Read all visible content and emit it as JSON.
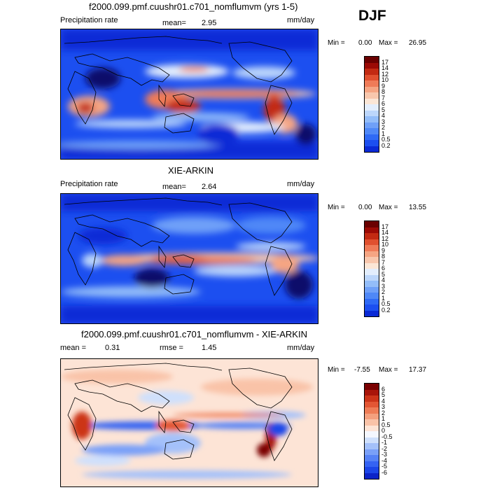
{
  "season": "DJF",
  "units": "mm/day",
  "colors": {
    "abs_scale": [
      "#08086b",
      "#0a2ad6",
      "#1c4ff0",
      "#2f6af5",
      "#4f88f7",
      "#6fa0f8",
      "#93bdf9",
      "#bcd6fb",
      "#e3eefd",
      "#fbe6d6",
      "#f8c7ad",
      "#f5a583",
      "#ef7b58",
      "#e0502f",
      "#c22a12",
      "#9b0a05",
      "#6a0000"
    ],
    "diff_scale": [
      "#080870",
      "#0c24c8",
      "#1c46e8",
      "#3563f3",
      "#5682f6",
      "#7aa0f8",
      "#a4c1fa",
      "#cfe0fc",
      "#f4f7fe",
      "#fde4d6",
      "#f9c3a8",
      "#f4a07e",
      "#ee7c56",
      "#e35634",
      "#cc3419",
      "#a8150a",
      "#7a0000"
    ]
  },
  "panels": [
    {
      "title": "f2000.099.pmf.cuushr01.c701_nomflumvm (yrs 1-5)",
      "left_label": "Precipitation rate",
      "stat_label": "mean=",
      "stat_value": "2.95",
      "units": "mm/day",
      "min_label": "Min =",
      "min_value": "0.00",
      "max_label": "Max =",
      "max_value": "26.95",
      "colorbar_labels": [
        "17",
        "14",
        "12",
        "10",
        "9",
        "8",
        "7",
        "6",
        "5",
        "4",
        "3",
        "2",
        "1",
        "0.5",
        "0.2"
      ]
    },
    {
      "title": "XIE-ARKIN",
      "left_label": "Precipitation rate",
      "stat_label": "mean=",
      "stat_value": "2.64",
      "units": "mm/day",
      "min_label": "Min =",
      "min_value": "0.00",
      "max_label": "Max =",
      "max_value": "13.55",
      "colorbar_labels": [
        "17",
        "14",
        "12",
        "10",
        "9",
        "8",
        "7",
        "6",
        "5",
        "4",
        "3",
        "2",
        "1",
        "0.5",
        "0.2"
      ]
    },
    {
      "title": "f2000.099.pmf.cuushr01.c701_nomflumvm - XIE-ARKIN",
      "mean_label": "mean =",
      "mean_value": "0.31",
      "rmse_label": "rmse =",
      "rmse_value": "1.45",
      "units": "mm/day",
      "min_label": "Min =",
      "min_value": "-7.55",
      "max_label": "Max =",
      "max_value": "17.37",
      "colorbar_labels": [
        "6",
        "5",
        "4",
        "3",
        "2",
        "1",
        "0.5",
        "0",
        "-0.5",
        "-1",
        "-2",
        "-3",
        "-4",
        "-5",
        "-6"
      ]
    }
  ],
  "chart_data": [
    {
      "type": "heatmap",
      "title": "f2000.099.pmf.cuushr01.c701_nomflumvm (yrs 1-5)",
      "field": "Precipitation rate",
      "units": "mm/day",
      "season": "DJF",
      "mean": 2.95,
      "min": 0.0,
      "max": 26.95,
      "contour_levels": [
        0.2,
        0.5,
        1,
        2,
        3,
        4,
        5,
        6,
        7,
        8,
        9,
        10,
        12,
        14,
        17
      ],
      "grid": false
    },
    {
      "type": "heatmap",
      "title": "XIE-ARKIN",
      "field": "Precipitation rate",
      "units": "mm/day",
      "season": "DJF",
      "mean": 2.64,
      "min": 0.0,
      "max": 13.55,
      "contour_levels": [
        0.2,
        0.5,
        1,
        2,
        3,
        4,
        5,
        6,
        7,
        8,
        9,
        10,
        12,
        14,
        17
      ],
      "grid": false
    },
    {
      "type": "heatmap",
      "title": "f2000.099.pmf.cuushr01.c701_nomflumvm - XIE-ARKIN",
      "units": "mm/day",
      "season": "DJF",
      "mean": 0.31,
      "rmse": 1.45,
      "min": -7.55,
      "max": 17.37,
      "contour_levels": [
        -6,
        -5,
        -4,
        -3,
        -2,
        -1,
        -0.5,
        0,
        0.5,
        1,
        2,
        3,
        4,
        5,
        6
      ],
      "grid": false
    }
  ]
}
